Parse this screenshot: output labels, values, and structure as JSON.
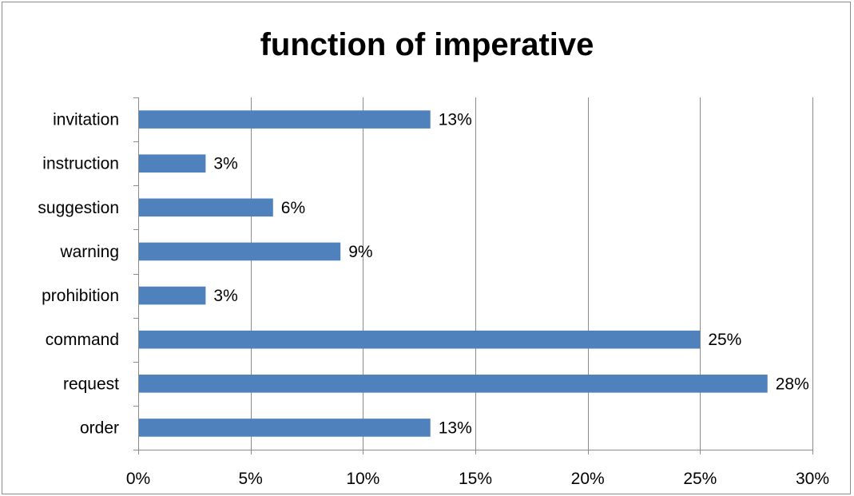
{
  "chart_data": {
    "type": "bar",
    "orientation": "horizontal",
    "title": "function of imperative",
    "xlabel": "",
    "ylabel": "",
    "categories": [
      "order",
      "request",
      "command",
      "prohibition",
      "warning",
      "suggestion",
      "instruction",
      "invitation"
    ],
    "values": [
      13,
      28,
      25,
      3,
      9,
      6,
      3,
      13
    ],
    "data_labels": [
      "13%",
      "28%",
      "25%",
      "3%",
      "9%",
      "6%",
      "3%",
      "13%"
    ],
    "xlim": [
      0,
      30
    ],
    "x_ticks": [
      0,
      5,
      10,
      15,
      20,
      25,
      30
    ],
    "x_tick_labels": [
      "0%",
      "5%",
      "10%",
      "15%",
      "20%",
      "25%",
      "30%"
    ],
    "grid": true,
    "legend": "none",
    "bar_color": "#4F81BD"
  }
}
